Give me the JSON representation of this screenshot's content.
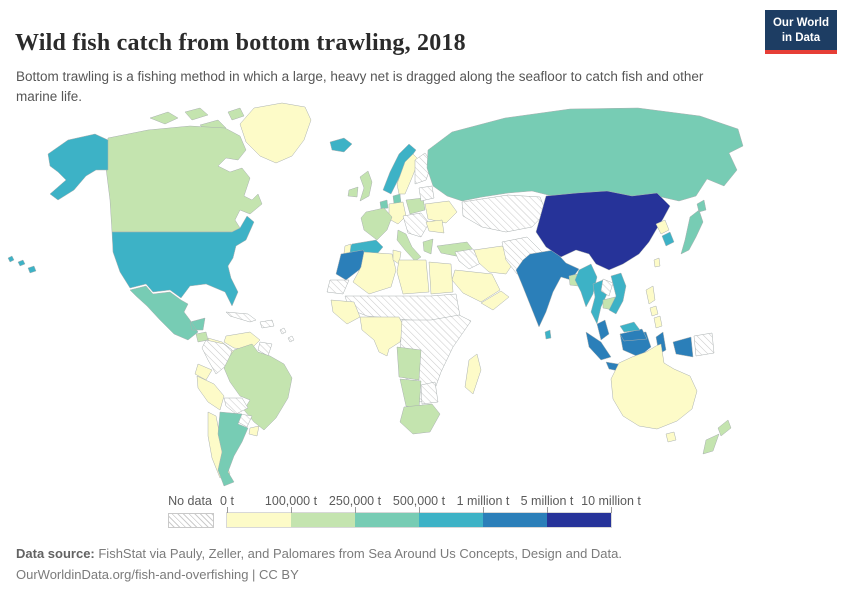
{
  "header": {
    "title": "Wild fish catch from bottom trawling, 2018",
    "subtitle": "Bottom trawling is a fishing method in which a large, heavy net is dragged along the seafloor to catch fish and other marine life.",
    "logo": {
      "line1": "Our World",
      "line2": "in Data",
      "bg": "#1d3d63",
      "accent": "#e63e36"
    }
  },
  "legend": {
    "no_data_label": "No data",
    "tick_labels": [
      "0 t",
      "100,000 t",
      "250,000 t",
      "500,000 t",
      "1 million t",
      "5 million t",
      "10 million t"
    ]
  },
  "chart_data": {
    "type": "heatmap",
    "subtype": "world-choropleth",
    "title": "Wild fish catch from bottom trawling, 2018",
    "unit": "tonnes",
    "year": "2018",
    "legend_position": "bottom",
    "no_data_fill": "hatch",
    "bands": [
      {
        "id": "no_data",
        "label": "No data",
        "color": "hatch"
      },
      {
        "id": "b0",
        "label": "0 t – 100,000 t",
        "color": "#fdfbc8"
      },
      {
        "id": "b1",
        "label": "100,000 t – 250,000 t",
        "color": "#c4e4af"
      },
      {
        "id": "b2",
        "label": "250,000 t – 500,000 t",
        "color": "#77ccb4"
      },
      {
        "id": "b3",
        "label": "500,000 t – 1 million t",
        "color": "#3db2c6"
      },
      {
        "id": "b4",
        "label": "1 million t – 5 million t",
        "color": "#2b7fb9"
      },
      {
        "id": "b5",
        "label": "5 million t – 10 million t",
        "color": "#263399"
      }
    ],
    "countries": {
      "greenland": "b0",
      "arctic-islands": "b1",
      "canada": "b1",
      "alaska": "b3",
      "usa": "b3",
      "hawaii": "b3",
      "mexico": "b2",
      "guatemala": "b1",
      "central-america": "b0",
      "cuba": "no_data",
      "hispaniola": "no_data",
      "caribbean": "no_data",
      "venezuela": "b0",
      "guyana": "no_data",
      "colombia": "no_data",
      "ecuador": "b0",
      "peru": "b0",
      "brazil": "b1",
      "bolivia": "no_data",
      "paraguay": "no_data",
      "uruguay": "b0",
      "chile": "b0",
      "argentina": "b2",
      "iceland": "b3",
      "ireland": "b1",
      "uk": "b1",
      "norway": "b3",
      "sweden": "b0",
      "finland": "no_data",
      "denmark": "b2",
      "netherlands": "b2",
      "germany": "b0",
      "poland": "b1",
      "belarus-baltics": "no_data",
      "france": "b1",
      "spain": "b3",
      "portugal": "b0",
      "italy": "b1",
      "central-europe": "no_data",
      "greece": "b1",
      "ukraine": "b0",
      "romania": "b0",
      "turkey": "b1",
      "russia": "b2",
      "kazakhstan": "no_data",
      "mongolia": "no_data",
      "iraq-syria": "no_data",
      "iran": "b0",
      "saudi-arabia": "b0",
      "yemen-oman": "b0",
      "afghanistan-pakistan": "no_data",
      "india": "b4",
      "sri-lanka": "b3",
      "bangladesh": "b1",
      "china": "b5",
      "north-korea": "b0",
      "south-korea": "b3",
      "japan": "b2",
      "taiwan": "b0",
      "myanmar": "b3",
      "thailand": "b3",
      "laos": "no_data",
      "cambodia": "b1",
      "vietnam": "b3",
      "malaysia": "b4",
      "sabah": "b3",
      "indonesia": "b4",
      "philippines": "b0",
      "papua-new-guinea": "no_data",
      "australia": "b0",
      "tasmania": "b0",
      "new-zealand": "b1",
      "morocco": "b4",
      "western-sahara": "no_data",
      "algeria": "b0",
      "tunisia": "b0",
      "libya": "b0",
      "egypt": "b0",
      "sahel": "no_data",
      "west-africa-coast": "b0",
      "gulf-of-guinea-coast": "b0",
      "east-africa": "no_data",
      "angola": "b1",
      "namibia": "b1",
      "botswana-zimbabwe": "no_data",
      "south-africa": "b1",
      "madagascar": "b0"
    }
  },
  "footer": {
    "source_label": "Data source:",
    "source_text": " FishStat via Pauly, Zeller, and Palomares from Sea Around Us Concepts, Design and Data.",
    "link": "OurWorldinData.org/fish-and-overfishing",
    "separator": " | ",
    "license": "CC BY"
  }
}
